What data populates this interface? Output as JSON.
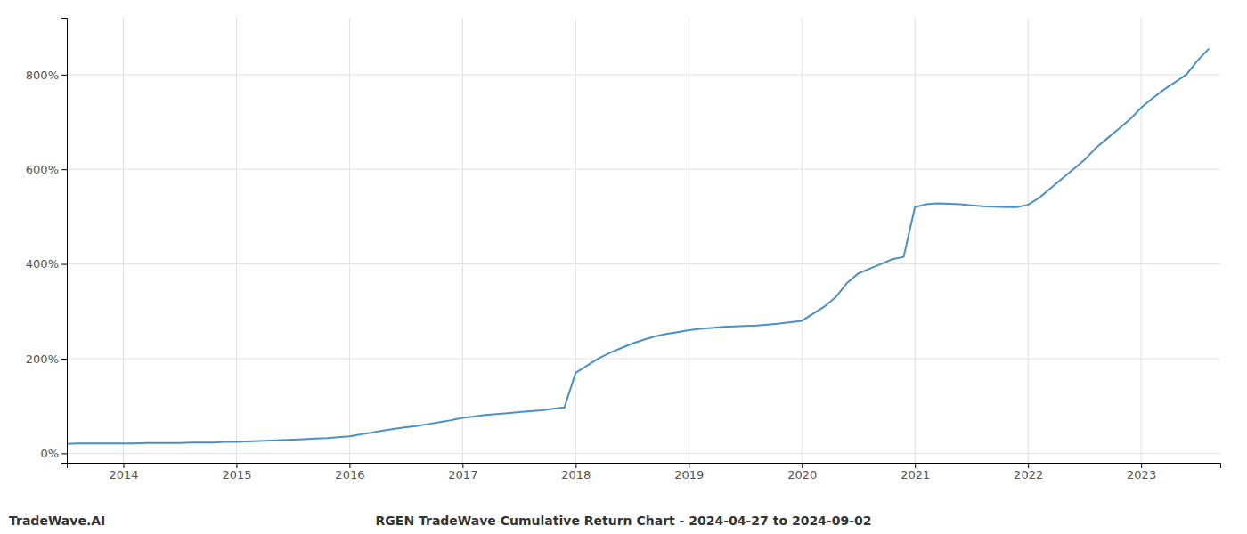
{
  "chart_data": {
    "type": "line",
    "title": "RGEN TradeWave Cumulative Return Chart - 2024-04-27 to 2024-09-02",
    "annotations": [
      "TradeWave.AI"
    ],
    "color": "#4a90c4",
    "grid": true,
    "x": [
      2013.5,
      2013.6,
      2013.7,
      2013.8,
      2013.9,
      2014.0,
      2014.1,
      2014.2,
      2014.3,
      2014.4,
      2014.5,
      2014.6,
      2014.7,
      2014.8,
      2014.9,
      2015.0,
      2015.1,
      2015.2,
      2015.3,
      2015.4,
      2015.5,
      2015.6,
      2015.7,
      2015.8,
      2015.9,
      2016.0,
      2016.1,
      2016.2,
      2016.3,
      2016.4,
      2016.5,
      2016.6,
      2016.7,
      2016.8,
      2016.9,
      2017.0,
      2017.1,
      2017.2,
      2017.3,
      2017.4,
      2017.5,
      2017.6,
      2017.7,
      2017.8,
      2017.9,
      2018.0,
      2018.1,
      2018.2,
      2018.3,
      2018.4,
      2018.5,
      2018.6,
      2018.7,
      2018.8,
      2018.9,
      2019.0,
      2019.1,
      2019.2,
      2019.3,
      2019.4,
      2019.5,
      2019.6,
      2019.7,
      2019.8,
      2019.9,
      2020.0,
      2020.1,
      2020.2,
      2020.3,
      2020.4,
      2020.5,
      2020.6,
      2020.7,
      2020.8,
      2020.9,
      2021.0,
      2021.1,
      2021.2,
      2021.3,
      2021.4,
      2021.5,
      2021.6,
      2021.7,
      2021.8,
      2021.9,
      2022.0,
      2022.1,
      2022.2,
      2022.3,
      2022.4,
      2022.5,
      2022.6,
      2022.7,
      2022.8,
      2022.9,
      2023.0,
      2023.1,
      2023.2,
      2023.3,
      2023.4,
      2023.5,
      2023.6
    ],
    "values": [
      20,
      21,
      21,
      21,
      21,
      21,
      21,
      22,
      22,
      22,
      22,
      23,
      23,
      23,
      24,
      24,
      25,
      26,
      27,
      28,
      29,
      30,
      31,
      32,
      34,
      36,
      40,
      44,
      48,
      52,
      55,
      58,
      62,
      66,
      70,
      75,
      78,
      81,
      83,
      85,
      87,
      89,
      91,
      94,
      97,
      170,
      185,
      200,
      212,
      222,
      232,
      240,
      247,
      252,
      256,
      260,
      263,
      265,
      267,
      268,
      269,
      270,
      272,
      274,
      277,
      280,
      295,
      310,
      330,
      360,
      380,
      390,
      400,
      410,
      415,
      520,
      526,
      528,
      527,
      526,
      524,
      522,
      521,
      520,
      520,
      525,
      540,
      560,
      580,
      600,
      620,
      645,
      665,
      685,
      705,
      730,
      750,
      768,
      784,
      800,
      830,
      855
    ],
    "xlim": [
      2013.5,
      2023.7
    ],
    "xticks": [
      2014,
      2015,
      2016,
      2017,
      2018,
      2019,
      2020,
      2021,
      2022,
      2023
    ],
    "ylim": [
      -20,
      920
    ],
    "yticks": [
      {
        "value": 0,
        "label": "0%"
      },
      {
        "value": 200,
        "label": "200%"
      },
      {
        "value": 400,
        "label": "400%"
      },
      {
        "value": 600,
        "label": "600%"
      },
      {
        "value": 800,
        "label": "800%"
      }
    ]
  }
}
